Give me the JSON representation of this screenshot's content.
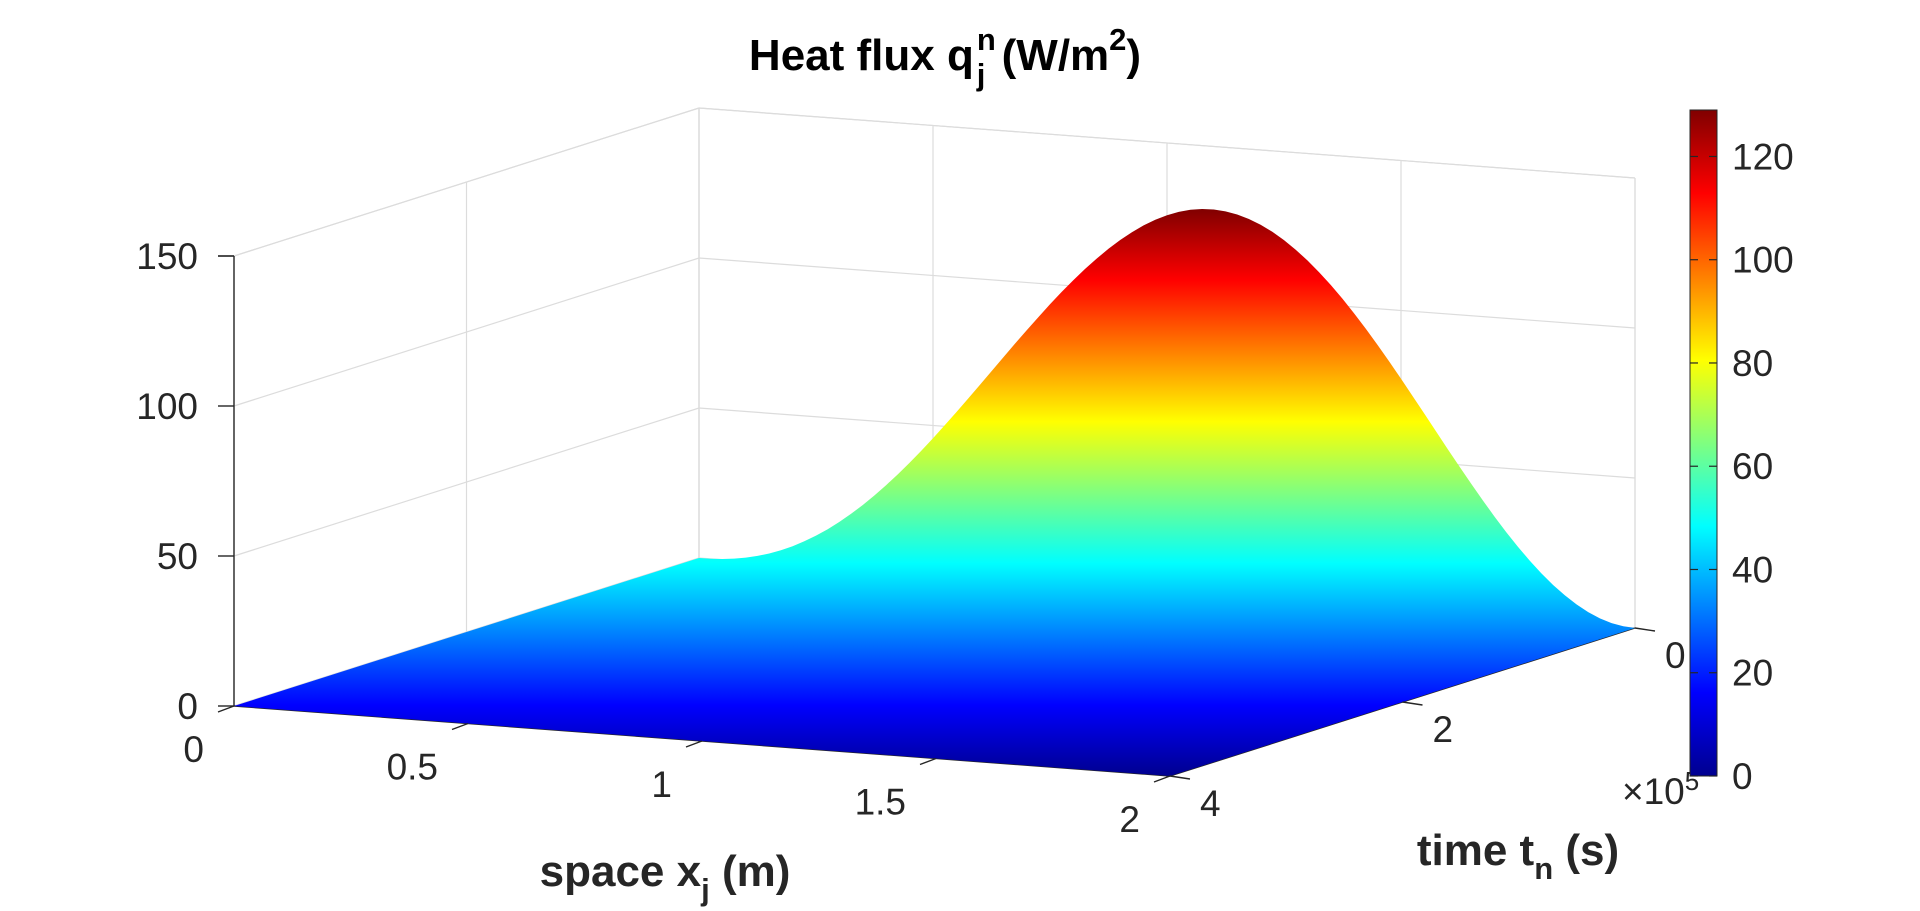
{
  "chart_data": {
    "type": "surface",
    "title": {
      "main": "Heat flux q",
      "sub": "j",
      "sup": "n",
      "units_open": " (W/m",
      "units_sup": "2",
      "units_close": ")"
    },
    "xlabel": {
      "main": "space x",
      "sub": "j",
      "units": " (m)"
    },
    "ylabel": {
      "main": "time t",
      "sub": "n",
      "units": " (s)"
    },
    "x_ticks": [
      "0",
      "0.5",
      "1",
      "1.5",
      "2"
    ],
    "x_tick_values": [
      0,
      0.5,
      1,
      1.5,
      2
    ],
    "xlim": [
      0,
      2
    ],
    "y_ticks": [
      "0",
      "2",
      "4"
    ],
    "y_tick_values": [
      0,
      2,
      4
    ],
    "ylim": [
      0,
      4
    ],
    "y_exponent": {
      "base": "×10",
      "power": "5"
    },
    "z_ticks": [
      "0",
      "50",
      "100",
      "150"
    ],
    "z_tick_values": [
      0,
      50,
      100,
      150
    ],
    "zlim": [
      0,
      150
    ],
    "colorbar": {
      "ticks": [
        "0",
        "20",
        "40",
        "60",
        "80",
        "100",
        "120"
      ],
      "tick_values": [
        0,
        20,
        40,
        60,
        80,
        100,
        120
      ],
      "range": [
        0,
        129
      ],
      "colormap": "jet"
    },
    "surface": {
      "description_of_values": "q(x, t) is near 0 at the small-time corner, rising to a maximum of about 129 along the large-time edge near x = 1.0",
      "peak_value": 129,
      "peak_x": 1.0,
      "peak_t": 400000,
      "value_at_x0_t_max": 0,
      "value_at_x2_t_max": 0
    },
    "grid": true
  }
}
